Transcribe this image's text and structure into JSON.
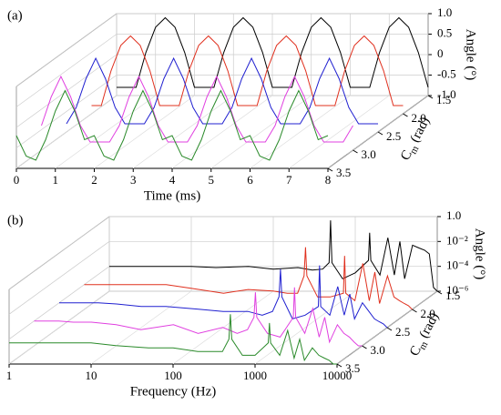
{
  "chart_data": [
    {
      "type": "waterfall",
      "panel_label": "(a)",
      "xlabel": "Time (ms)",
      "ylabel": "Angle (°)",
      "zlabel": {
        "main": "C",
        "sub": "m",
        "unit": " (rad)"
      },
      "xscale": "linear",
      "yscale": "linear",
      "xlim": [
        0,
        8
      ],
      "xticks": [
        0,
        1,
        2,
        3,
        4,
        5,
        6,
        7,
        8
      ],
      "ylim": [
        -1,
        1
      ],
      "yticks": [
        {
          "value": 1,
          "label": "1.0"
        },
        0.5,
        0,
        -0.5,
        {
          "value": -1,
          "label": "-1.0"
        }
      ],
      "zlim": [
        1.5,
        3.5
      ],
      "zticks": [
        1.5,
        {
          "value": 2,
          "label": "2.0"
        },
        2.5,
        {
          "value": 3,
          "label": "3.0"
        },
        3.5
      ],
      "grid": true,
      "x": [
        0,
        0.25,
        0.5,
        0.75,
        1,
        1.25,
        1.5,
        1.75,
        2,
        2.25,
        2.5,
        2.75,
        3,
        3.25,
        3.5,
        3.75,
        4,
        4.25,
        4.5,
        4.75,
        5,
        5.25,
        5.5,
        5.75,
        6,
        6.25,
        6.5,
        6.75,
        7,
        7.25,
        7.5,
        7.75,
        8
      ],
      "series": [
        {
          "z": 1.5,
          "color": "#000000",
          "values": [
            -0.8,
            -0.8,
            -0.8,
            0.05,
            0.67,
            0.9,
            0.67,
            0.05,
            -0.8,
            -0.8,
            -0.8,
            0.05,
            0.67,
            0.9,
            0.67,
            0.05,
            -0.8,
            -0.8,
            -0.8,
            0.05,
            0.67,
            0.9,
            0.67,
            0.05,
            -0.8,
            -0.8,
            -0.8,
            0.05,
            0.67,
            0.9,
            0.67,
            0.05,
            -0.8
          ]
        },
        {
          "z": 2.0,
          "color": "#e0301e",
          "values": [
            -0.8,
            -0.8,
            0.05,
            0.67,
            0.9,
            0.67,
            0.05,
            -0.8,
            -0.8,
            -0.8,
            0.05,
            0.67,
            0.9,
            0.67,
            0.05,
            -0.8,
            -0.8,
            -0.8,
            0.05,
            0.67,
            0.9,
            0.67,
            0.05,
            -0.8,
            -0.8,
            -0.8,
            0.05,
            0.67,
            0.9,
            0.67,
            0.05,
            -0.8,
            -0.8
          ]
        },
        {
          "z": 2.5,
          "color": "#2020d0",
          "values": [
            -0.8,
            -0.4,
            0.3,
            0.8,
            0.3,
            -0.4,
            -0.8,
            -0.8,
            -0.8,
            -0.4,
            0.3,
            0.8,
            0.3,
            -0.4,
            -0.8,
            -0.8,
            -0.8,
            -0.4,
            0.3,
            0.8,
            0.3,
            -0.4,
            -0.8,
            -0.8,
            -0.8,
            -0.4,
            0.3,
            0.8,
            0.3,
            -0.4,
            -0.8,
            -0.8,
            -0.8
          ]
        },
        {
          "z": 3.0,
          "color": "#e040e0",
          "values": [
            -0.4,
            0.3,
            0.8,
            0.3,
            -0.4,
            -0.8,
            -0.8,
            -0.8,
            -0.4,
            0.3,
            0.8,
            0.3,
            -0.4,
            -0.8,
            -0.8,
            -0.8,
            -0.4,
            0.3,
            0.8,
            0.3,
            -0.4,
            -0.8,
            -0.8,
            -0.8,
            -0.4,
            0.3,
            0.8,
            0.3,
            -0.4,
            -0.8,
            -0.8,
            -0.8,
            -0.4
          ]
        },
        {
          "z": 3.5,
          "color": "#2a8a2a",
          "values": [
            -0.2,
            -0.7,
            -0.8,
            -0.3,
            0.4,
            0.9,
            0.4,
            -0.3,
            -0.2,
            -0.7,
            -0.8,
            -0.3,
            0.4,
            0.9,
            0.4,
            -0.3,
            -0.2,
            -0.7,
            -0.8,
            -0.3,
            0.4,
            0.9,
            0.4,
            -0.3,
            -0.2,
            -0.7,
            -0.8,
            -0.3,
            0.4,
            0.9,
            0.4,
            -0.3,
            -0.2
          ]
        }
      ]
    },
    {
      "type": "waterfall",
      "panel_label": "(b)",
      "xlabel": "Frequency (Hz)",
      "ylabel": "Angle (°)",
      "zlabel": {
        "main": "C",
        "sub": "m",
        "unit": " (rad)"
      },
      "xscale": "log",
      "yscale": "log",
      "xlim": [
        1,
        10000
      ],
      "xticks": [
        1,
        10,
        100,
        1000,
        10000
      ],
      "ylim": [
        1e-06,
        1
      ],
      "yticks": [
        {
          "value": 1,
          "label": "1.0"
        },
        {
          "value": 0.01,
          "label": "10⁻²"
        },
        {
          "value": 0.0001,
          "label": "10⁻⁴"
        },
        {
          "value": 1e-06,
          "label": "10⁻⁶"
        }
      ],
      "zlim": [
        1.5,
        3.5
      ],
      "zticks": [
        1.5,
        {
          "value": 2,
          "label": "2.0"
        },
        2.5,
        {
          "value": 3,
          "label": "3.0"
        },
        3.5
      ],
      "grid": true,
      "x": [
        1,
        2,
        3,
        5,
        10,
        20,
        50,
        100,
        200,
        300,
        400,
        480,
        500,
        520,
        700,
        1000,
        1450,
        1500,
        1550,
        2000,
        2500,
        3000,
        3500,
        4000,
        5000,
        6000,
        7000,
        8000,
        9000,
        10000
      ],
      "series": [
        {
          "z": 1.5,
          "color": "#000000",
          "values": [
            0.0001,
            0.0001,
            0.0001,
            0.0001,
            0.0001,
            8e-05,
            0.0001,
            6e-05,
            8e-05,
            5e-05,
            6e-05,
            0.0002,
            0.5,
            0.0002,
            1e-05,
            3e-05,
            0.0003,
            0.05,
            0.0003,
            2e-05,
            0.02,
            2e-05,
            0.01,
            1e-05,
            0.005,
            0.003,
            0.002,
            0.001,
            2e-06,
            1e-06
          ]
        },
        {
          "z": 2.0,
          "color": "#e0301e",
          "values": [
            0.0001,
            0.0001,
            0.0001,
            0.0001,
            0.0001,
            5e-05,
            2e-05,
            4e-05,
            3e-05,
            2e-05,
            2e-05,
            0.0005,
            0.1,
            0.0005,
            1e-05,
            1e-05,
            2e-05,
            0.02,
            2e-05,
            5e-06,
            0.005,
            5e-06,
            0.001,
            3e-06,
            0.0005,
            1e-05,
            5e-06,
            3e-06,
            2e-06,
            1e-06
          ]
        },
        {
          "z": 2.5,
          "color": "#2020d0",
          "values": [
            0.0001,
            0.0001,
            0.0001,
            8e-05,
            5e-05,
            5e-05,
            3e-05,
            2e-05,
            2e-05,
            1e-05,
            2e-05,
            0.0003,
            0.05,
            0.0003,
            5e-06,
            1e-05,
            5e-05,
            0.1,
            5e-05,
            1e-05,
            0.002,
            1e-05,
            0.0005,
            5e-06,
            0.0001,
            2e-05,
            5e-06,
            3e-06,
            2e-06,
            1e-06
          ]
        },
        {
          "z": 3.0,
          "color": "#e040e0",
          "values": [
            0.0001,
            0.0001,
            8e-05,
            8e-05,
            5e-05,
            2e-05,
            5e-05,
            1e-05,
            3e-05,
            1e-05,
            2e-05,
            0.0002,
            0.02,
            0.0002,
            1e-05,
            5e-06,
            0.0002,
            0.05,
            0.0002,
            1e-05,
            0.001,
            5e-06,
            0.0002,
            2e-06,
            5e-05,
            1e-05,
            5e-06,
            2e-06,
            1e-06,
            1e-06
          ]
        },
        {
          "z": 3.5,
          "color": "#2a8a2a",
          "values": [
            5e-05,
            5e-05,
            5e-05,
            5e-05,
            5e-05,
            3e-05,
            2e-05,
            2e-05,
            1e-05,
            1e-05,
            1e-05,
            0.0001,
            0.01,
            0.0001,
            5e-06,
            5e-06,
            5e-05,
            0.002,
            5e-05,
            5e-06,
            0.0005,
            3e-06,
            0.0001,
            2e-06,
            2e-05,
            5e-06,
            3e-06,
            2e-06,
            1e-06,
            1e-06
          ]
        }
      ]
    }
  ]
}
